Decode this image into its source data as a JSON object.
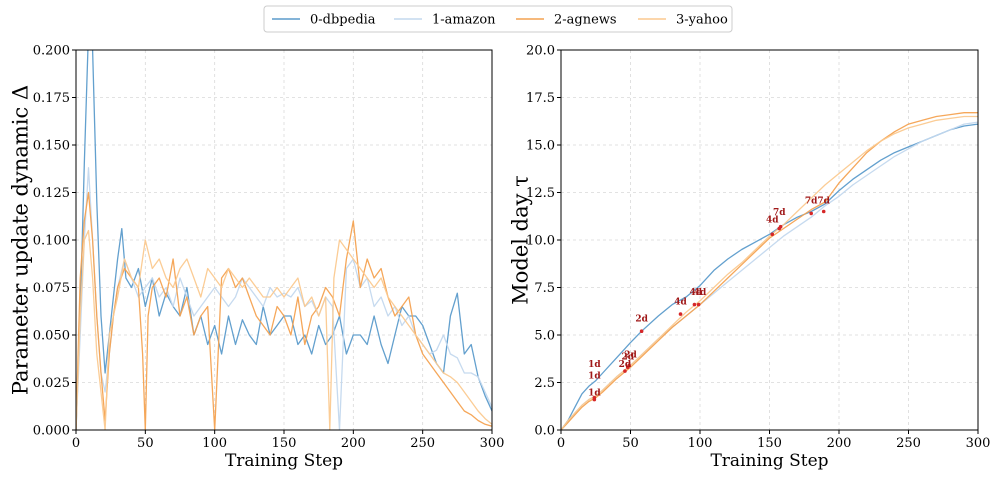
{
  "legend": {
    "entries": [
      {
        "label": "0-dbpedia",
        "color": "#5b9bcb"
      },
      {
        "label": "1-amazon",
        "color": "#c3d8ee"
      },
      {
        "label": "2-agnews",
        "color": "#f4a251"
      },
      {
        "label": "3-yahoo",
        "color": "#fbc98f"
      }
    ]
  },
  "colors": {
    "dbpedia": "#5b9bcb",
    "amazon": "#c3d8ee",
    "agnews": "#f4a251",
    "yahoo": "#fbc98f",
    "marker": "#d62728",
    "annotation": "#a01818",
    "grid": "#d9d9d9"
  },
  "chart_data": [
    {
      "type": "line",
      "xlabel": "Training Step",
      "ylabel": "Parameter update dynamic Δ",
      "xlim": [
        0,
        300
      ],
      "ylim": [
        0.0,
        0.2
      ],
      "xticks": [
        0,
        50,
        100,
        150,
        200,
        250,
        300
      ],
      "yticks": [
        0.0,
        0.025,
        0.05,
        0.075,
        0.1,
        0.125,
        0.15,
        0.175,
        0.2
      ],
      "ytick_labels": [
        "0.000",
        "0.025",
        "0.050",
        "0.075",
        "0.100",
        "0.125",
        "0.150",
        "0.175",
        "0.200"
      ],
      "grid": true,
      "series": [
        {
          "name": "0-dbpedia",
          "x": [
            0,
            3,
            6,
            9,
            12,
            15,
            18,
            21,
            24,
            27,
            30,
            33,
            36,
            40,
            45,
            50,
            55,
            60,
            65,
            70,
            75,
            80,
            85,
            90,
            95,
            100,
            105,
            110,
            115,
            120,
            125,
            130,
            135,
            140,
            145,
            150,
            155,
            160,
            165,
            170,
            175,
            180,
            185,
            190,
            195,
            200,
            205,
            210,
            215,
            220,
            225,
            230,
            235,
            240,
            245,
            250,
            255,
            260,
            265,
            270,
            275,
            280,
            285,
            290,
            295,
            300
          ],
          "y": [
            0.0,
            0.06,
            0.14,
            0.21,
            0.2,
            0.12,
            0.06,
            0.03,
            0.05,
            0.07,
            0.09,
            0.106,
            0.08,
            0.075,
            0.085,
            0.065,
            0.08,
            0.06,
            0.072,
            0.065,
            0.06,
            0.075,
            0.05,
            0.06,
            0.045,
            0.055,
            0.04,
            0.06,
            0.045,
            0.058,
            0.05,
            0.045,
            0.065,
            0.05,
            0.055,
            0.06,
            0.06,
            0.045,
            0.05,
            0.04,
            0.055,
            0.045,
            0.05,
            0.06,
            0.04,
            0.05,
            0.05,
            0.045,
            0.06,
            0.045,
            0.035,
            0.05,
            0.065,
            0.06,
            0.06,
            0.055,
            0.045,
            0.035,
            0.03,
            0.06,
            0.072,
            0.04,
            0.045,
            0.028,
            0.018,
            0.01
          ]
        },
        {
          "name": "1-amazon",
          "x": [
            0,
            3,
            6,
            9,
            12,
            15,
            18,
            21,
            24,
            27,
            30,
            35,
            40,
            45,
            50,
            55,
            60,
            65,
            70,
            75,
            80,
            85,
            90,
            95,
            100,
            105,
            110,
            115,
            120,
            125,
            130,
            135,
            140,
            145,
            150,
            155,
            160,
            165,
            170,
            175,
            180,
            185,
            190,
            195,
            200,
            205,
            210,
            215,
            220,
            225,
            230,
            235,
            240,
            245,
            250,
            255,
            260,
            265,
            270,
            275,
            280,
            285,
            290,
            295,
            300
          ],
          "y": [
            0.0,
            0.05,
            0.1,
            0.138,
            0.1,
            0.06,
            0.03,
            0.02,
            0.04,
            0.06,
            0.075,
            0.09,
            0.08,
            0.07,
            0.075,
            0.08,
            0.07,
            0.075,
            0.065,
            0.08,
            0.07,
            0.06,
            0.065,
            0.07,
            0.075,
            0.07,
            0.065,
            0.07,
            0.08,
            0.075,
            0.07,
            0.065,
            0.075,
            0.07,
            0.072,
            0.07,
            0.075,
            0.065,
            0.068,
            0.06,
            0.07,
            0.065,
            0.0,
            0.085,
            0.09,
            0.075,
            0.08,
            0.065,
            0.07,
            0.06,
            0.065,
            0.055,
            0.06,
            0.05,
            0.045,
            0.04,
            0.042,
            0.05,
            0.04,
            0.038,
            0.03,
            0.03,
            0.028,
            0.02,
            0.012
          ]
        },
        {
          "name": "2-agnews",
          "x": [
            0,
            3,
            6,
            9,
            12,
            15,
            18,
            21,
            24,
            27,
            30,
            35,
            40,
            45,
            48,
            50,
            52,
            55,
            60,
            65,
            70,
            75,
            80,
            85,
            90,
            95,
            100,
            105,
            110,
            115,
            120,
            125,
            130,
            135,
            140,
            145,
            150,
            155,
            160,
            165,
            170,
            175,
            180,
            185,
            190,
            195,
            200,
            205,
            210,
            215,
            220,
            225,
            230,
            235,
            240,
            245,
            250,
            255,
            260,
            265,
            270,
            275,
            280,
            285,
            290,
            295,
            300
          ],
          "y": [
            0.0,
            0.08,
            0.11,
            0.125,
            0.1,
            0.06,
            0.03,
            0.005,
            0.04,
            0.06,
            0.075,
            0.085,
            0.08,
            0.075,
            0.04,
            0.0,
            0.06,
            0.075,
            0.08,
            0.07,
            0.09,
            0.06,
            0.07,
            0.05,
            0.06,
            0.065,
            0.0,
            0.08,
            0.085,
            0.075,
            0.08,
            0.07,
            0.06,
            0.055,
            0.05,
            0.065,
            0.06,
            0.05,
            0.07,
            0.045,
            0.06,
            0.065,
            0.075,
            0.07,
            0.06,
            0.09,
            0.11,
            0.075,
            0.09,
            0.08,
            0.085,
            0.07,
            0.06,
            0.065,
            0.07,
            0.05,
            0.04,
            0.035,
            0.03,
            0.025,
            0.02,
            0.015,
            0.01,
            0.008,
            0.005,
            0.003,
            0.002
          ]
        },
        {
          "name": "3-yahoo",
          "x": [
            0,
            3,
            6,
            9,
            12,
            15,
            18,
            21,
            24,
            27,
            30,
            35,
            40,
            45,
            50,
            55,
            60,
            65,
            70,
            75,
            80,
            85,
            90,
            95,
            100,
            105,
            110,
            115,
            120,
            125,
            130,
            135,
            140,
            145,
            150,
            155,
            160,
            165,
            170,
            175,
            180,
            183,
            186,
            190,
            195,
            200,
            205,
            210,
            215,
            220,
            225,
            230,
            235,
            240,
            245,
            250,
            255,
            260,
            265,
            270,
            275,
            280,
            285,
            290,
            295,
            300
          ],
          "y": [
            0.0,
            0.06,
            0.1,
            0.105,
            0.08,
            0.04,
            0.02,
            0.0,
            0.05,
            0.06,
            0.07,
            0.09,
            0.08,
            0.075,
            0.1,
            0.085,
            0.09,
            0.08,
            0.075,
            0.085,
            0.09,
            0.08,
            0.07,
            0.085,
            0.08,
            0.075,
            0.085,
            0.08,
            0.075,
            0.08,
            0.075,
            0.07,
            0.07,
            0.075,
            0.07,
            0.075,
            0.08,
            0.065,
            0.07,
            0.06,
            0.07,
            0.0,
            0.08,
            0.1,
            0.095,
            0.09,
            0.085,
            0.08,
            0.075,
            0.08,
            0.07,
            0.065,
            0.06,
            0.055,
            0.05,
            0.045,
            0.04,
            0.035,
            0.03,
            0.028,
            0.025,
            0.02,
            0.015,
            0.01,
            0.006,
            0.003
          ]
        }
      ]
    },
    {
      "type": "line",
      "xlabel": "Training Step",
      "ylabel": "Model day τ",
      "xlim": [
        0,
        300
      ],
      "ylim": [
        0.0,
        20.0
      ],
      "xticks": [
        0,
        50,
        100,
        150,
        200,
        250,
        300
      ],
      "yticks": [
        0.0,
        2.5,
        5.0,
        7.5,
        10.0,
        12.5,
        15.0,
        17.5,
        20.0
      ],
      "ytick_labels": [
        "0.0",
        "2.5",
        "5.0",
        "7.5",
        "10.0",
        "12.5",
        "15.0",
        "17.5",
        "20.0"
      ],
      "grid": true,
      "series": [
        {
          "name": "0-dbpedia",
          "x": [
            0,
            5,
            10,
            15,
            20,
            25,
            30,
            40,
            50,
            58,
            70,
            80,
            90,
            100,
            110,
            120,
            130,
            140,
            150,
            160,
            170,
            180,
            190,
            200,
            210,
            220,
            230,
            240,
            250,
            260,
            270,
            280,
            290,
            300
          ],
          "y": [
            0,
            0.5,
            1.2,
            1.9,
            2.3,
            2.6,
            3.0,
            3.8,
            4.6,
            5.2,
            6.0,
            6.6,
            7.0,
            7.6,
            8.4,
            9.0,
            9.5,
            9.9,
            10.3,
            10.8,
            11.2,
            11.5,
            11.9,
            12.6,
            13.2,
            13.7,
            14.2,
            14.6,
            14.9,
            15.2,
            15.5,
            15.8,
            16.0,
            16.1
          ]
        },
        {
          "name": "1-amazon",
          "x": [
            0,
            5,
            10,
            15,
            20,
            25,
            30,
            40,
            50,
            60,
            70,
            80,
            90,
            100,
            110,
            120,
            130,
            140,
            150,
            160,
            170,
            180,
            190,
            200,
            210,
            220,
            230,
            240,
            250,
            260,
            270,
            280,
            290,
            300
          ],
          "y": [
            0,
            0.4,
            0.9,
            1.3,
            1.6,
            1.8,
            2.1,
            2.8,
            3.4,
            4.1,
            4.8,
            5.4,
            6.0,
            6.6,
            7.2,
            7.8,
            8.4,
            9.0,
            9.6,
            10.2,
            10.7,
            11.2,
            11.8,
            12.3,
            12.9,
            13.4,
            13.9,
            14.4,
            14.8,
            15.2,
            15.5,
            15.8,
            16.1,
            16.2
          ]
        },
        {
          "name": "2-agnews",
          "x": [
            0,
            5,
            10,
            15,
            20,
            25,
            30,
            40,
            50,
            60,
            70,
            80,
            90,
            100,
            110,
            120,
            130,
            140,
            150,
            160,
            170,
            180,
            190,
            200,
            210,
            220,
            230,
            240,
            250,
            260,
            270,
            280,
            290,
            300
          ],
          "y": [
            0,
            0.4,
            0.8,
            1.2,
            1.5,
            1.7,
            2.0,
            2.7,
            3.3,
            4.0,
            4.7,
            5.4,
            6.0,
            6.6,
            7.3,
            8.0,
            8.7,
            9.4,
            10.1,
            10.6,
            11.1,
            11.6,
            12.0,
            13.0,
            13.8,
            14.6,
            15.2,
            15.7,
            16.1,
            16.3,
            16.5,
            16.6,
            16.7,
            16.7
          ]
        },
        {
          "name": "3-yahoo",
          "x": [
            0,
            5,
            10,
            15,
            20,
            25,
            30,
            40,
            50,
            60,
            70,
            80,
            90,
            100,
            110,
            120,
            130,
            140,
            150,
            160,
            170,
            180,
            190,
            200,
            210,
            220,
            230,
            240,
            250,
            260,
            270,
            280,
            290,
            300
          ],
          "y": [
            0,
            0.5,
            0.9,
            1.3,
            1.6,
            1.8,
            2.1,
            2.8,
            3.4,
            4.1,
            4.8,
            5.5,
            6.2,
            6.8,
            7.5,
            8.2,
            8.8,
            9.5,
            10.2,
            10.8,
            11.5,
            12.2,
            12.9,
            13.5,
            14.1,
            14.7,
            15.2,
            15.6,
            15.9,
            16.1,
            16.3,
            16.4,
            16.5,
            16.5
          ]
        }
      ],
      "markers": [
        {
          "x": 24,
          "y": 1.6
        },
        {
          "x": 24,
          "y": 1.7
        },
        {
          "x": 46,
          "y": 3.1
        },
        {
          "x": 48,
          "y": 3.3
        },
        {
          "x": 49,
          "y": 3.4
        },
        {
          "x": 58,
          "y": 5.2
        },
        {
          "x": 86,
          "y": 6.1
        },
        {
          "x": 96,
          "y": 6.6
        },
        {
          "x": 99,
          "y": 6.6
        },
        {
          "x": 152,
          "y": 10.3
        },
        {
          "x": 157,
          "y": 10.6
        },
        {
          "x": 158,
          "y": 10.7
        },
        {
          "x": 180,
          "y": 11.4
        },
        {
          "x": 189,
          "y": 11.5
        }
      ],
      "annotations": [
        {
          "x": 24,
          "y": 1.6,
          "text": "1d"
        },
        {
          "x": 24,
          "y": 2.5,
          "text": "1d"
        },
        {
          "x": 24,
          "y": 3.1,
          "text": "1d"
        },
        {
          "x": 46,
          "y": 3.1,
          "text": "2d"
        },
        {
          "x": 48,
          "y": 3.5,
          "text": "2d"
        },
        {
          "x": 50,
          "y": 3.6,
          "text": "2d"
        },
        {
          "x": 58,
          "y": 5.5,
          "text": "2d"
        },
        {
          "x": 86,
          "y": 6.4,
          "text": "4d"
        },
        {
          "x": 97,
          "y": 6.9,
          "text": "4d"
        },
        {
          "x": 100,
          "y": 6.9,
          "text": "4d"
        },
        {
          "x": 152,
          "y": 10.7,
          "text": "4d"
        },
        {
          "x": 157,
          "y": 11.1,
          "text": "7d"
        },
        {
          "x": 180,
          "y": 11.7,
          "text": "7d"
        },
        {
          "x": 189,
          "y": 11.7,
          "text": "7d"
        }
      ]
    }
  ]
}
